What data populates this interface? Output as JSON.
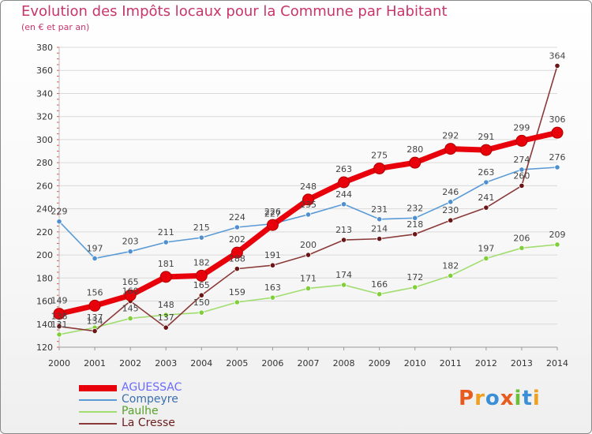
{
  "header": {
    "title": "Evolution des Impôts locaux pour la Commune par Habitant",
    "subtitle": "(en € et par an)"
  },
  "colors": {
    "title": "#c8356b",
    "grid": "#d9d9d9",
    "axis_text": "#333333",
    "label_text": "#444444"
  },
  "logo": {
    "text": "Proxiti",
    "colors": [
      "#e85b1f",
      "#f0a020",
      "#3a8fd6",
      "#e85b1f",
      "#6cbf3a",
      "#3a8fd6",
      "#f0a020"
    ]
  },
  "chart_data": {
    "type": "line",
    "x": [
      "2000",
      "2001",
      "2002",
      "2003",
      "2004",
      "2005",
      "2006",
      "2007",
      "2008",
      "2009",
      "2010",
      "2011",
      "2012",
      "2013",
      "2014"
    ],
    "ylim": [
      120,
      380
    ],
    "yticks": [
      120,
      140,
      160,
      180,
      200,
      220,
      240,
      260,
      280,
      300,
      320,
      340,
      360,
      380
    ],
    "grid": true,
    "legend_position": "bottom-left",
    "series": [
      {
        "name": "AGUESSAC",
        "color": "#e8000b",
        "marker_color": "#e8000b",
        "legend_text_color": "#6a6aff",
        "weight": "heavy",
        "values": [
          149,
          156,
          165,
          181,
          182,
          202,
          226,
          248,
          263,
          275,
          280,
          292,
          291,
          299,
          306
        ]
      },
      {
        "name": "Compeyre",
        "color": "#5b9bd5",
        "marker_color": "#4f8fcf",
        "legend_text_color": "#3a6fb0",
        "weight": "normal",
        "values": [
          229,
          197,
          203,
          211,
          215,
          224,
          227,
          235,
          244,
          231,
          232,
          246,
          263,
          274,
          276
        ]
      },
      {
        "name": "Paulhe",
        "color": "#a2dd70",
        "marker_color": "#7fcf3a",
        "legend_text_color": "#5aa02c",
        "weight": "normal",
        "values": [
          131,
          137,
          145,
          148,
          150,
          159,
          163,
          171,
          174,
          166,
          172,
          182,
          197,
          206,
          209
        ]
      },
      {
        "name": "La Cresse",
        "color": "#8b3a3a",
        "marker_color": "#6b1616",
        "legend_text_color": "#6b1e1e",
        "weight": "normal",
        "values": [
          138,
          134,
          160,
          137,
          165,
          188,
          191,
          200,
          213,
          214,
          218,
          230,
          241,
          260,
          364
        ]
      }
    ],
    "data_labels": {
      "AGUESSAC": [
        "149",
        "156",
        "165",
        "181",
        "182",
        "202",
        "226",
        "248",
        "263",
        "275",
        "280",
        "292",
        "291",
        "299",
        "306"
      ],
      "Compeyre": [
        "229",
        "197",
        "203",
        "211",
        "215",
        "224",
        "227",
        "235",
        "244",
        "231",
        "232",
        "246",
        "263",
        "274",
        "276"
      ],
      "Paulhe": [
        "131",
        "137",
        "145",
        "148",
        "150",
        "159",
        "163",
        "171",
        "174",
        "166",
        "172",
        "182",
        "197",
        "206",
        "209"
      ],
      "La Cresse": [
        "138",
        "134",
        "160",
        "137",
        "165",
        "188",
        "191",
        "200",
        "213",
        "214",
        "218",
        "230",
        "241",
        "260",
        "364"
      ]
    }
  }
}
